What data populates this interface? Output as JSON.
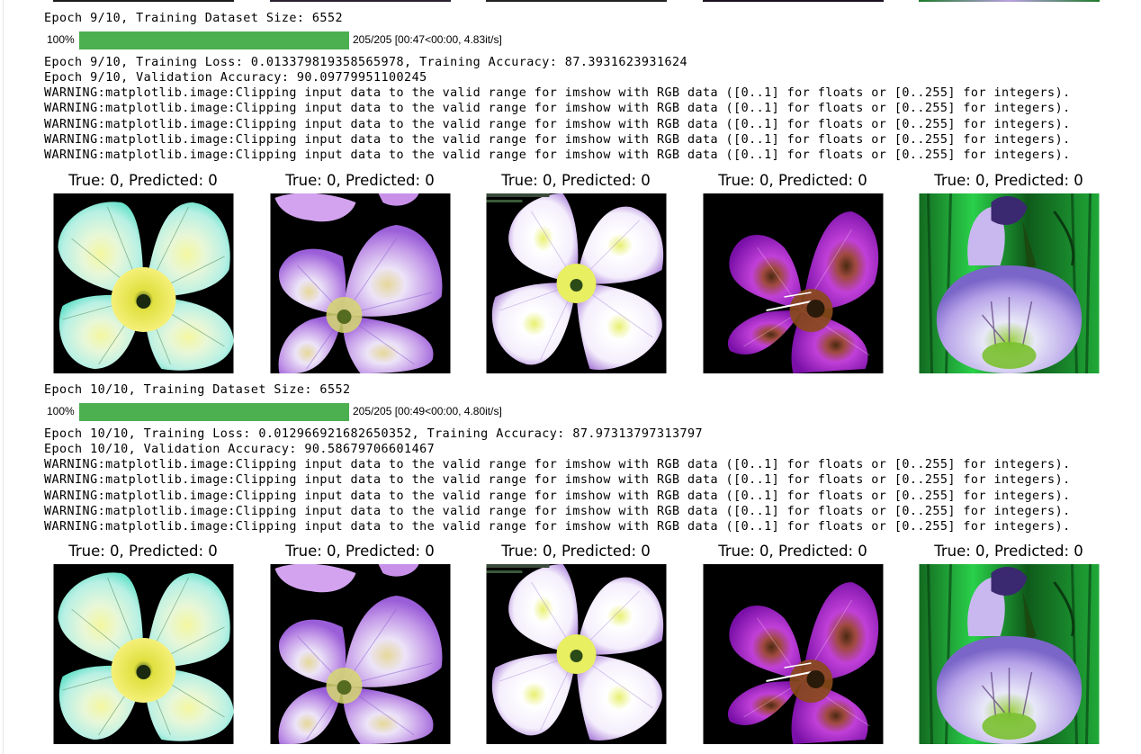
{
  "epochs": [
    {
      "dataset_size_text": "Epoch 9/10, Training Dataset Size: 6552",
      "progress": {
        "percent_text": "100%",
        "fraction": 1.0,
        "status_text": "205/205 [00:47<00:00, 4.83it/s]",
        "color": "#4caf50"
      },
      "loss_text": "Epoch 9/10, Training Loss: 0.013379819358565978, Training Accuracy: 87.3931623931624",
      "val_text": "Epoch 9/10, Validation Accuracy: 90.09779951100245",
      "warnings": [
        "WARNING:matplotlib.image:Clipping input data to the valid range for imshow with RGB data ([0..1] for floats or [0..255] for integers).",
        "WARNING:matplotlib.image:Clipping input data to the valid range for imshow with RGB data ([0..1] for floats or [0..255] for integers).",
        "WARNING:matplotlib.image:Clipping input data to the valid range for imshow with RGB data ([0..1] for floats or [0..255] for integers).",
        "WARNING:matplotlib.image:Clipping input data to the valid range for imshow with RGB data ([0..1] for floats or [0..255] for integers).",
        "WARNING:matplotlib.image:Clipping input data to the valid range for imshow with RGB data ([0..1] for floats or [0..255] for integers)."
      ],
      "panels": [
        {
          "title": "True: 0, Predicted: 0",
          "image": "white-yellow-flower"
        },
        {
          "title": "True: 0, Predicted: 0",
          "image": "lilac-flower"
        },
        {
          "title": "True: 0, Predicted: 0",
          "image": "white-purple-flower"
        },
        {
          "title": "True: 0, Predicted: 0",
          "image": "magenta-flower"
        },
        {
          "title": "True: 0, Predicted: 0",
          "image": "bellflower-green-background"
        }
      ]
    },
    {
      "dataset_size_text": "Epoch 10/10, Training Dataset Size: 6552",
      "progress": {
        "percent_text": "100%",
        "fraction": 1.0,
        "status_text": "205/205 [00:49<00:00, 4.80it/s]",
        "color": "#4caf50"
      },
      "loss_text": "Epoch 10/10, Training Loss: 0.012966921682650352, Training Accuracy: 87.97313797313797",
      "val_text": "Epoch 10/10, Validation Accuracy: 90.58679706601467",
      "warnings": [
        "WARNING:matplotlib.image:Clipping input data to the valid range for imshow with RGB data ([0..1] for floats or [0..255] for integers).",
        "WARNING:matplotlib.image:Clipping input data to the valid range for imshow with RGB data ([0..1] for floats or [0..255] for integers).",
        "WARNING:matplotlib.image:Clipping input data to the valid range for imshow with RGB data ([0..1] for floats or [0..255] for integers).",
        "WARNING:matplotlib.image:Clipping input data to the valid range for imshow with RGB data ([0..1] for floats or [0..255] for integers).",
        "WARNING:matplotlib.image:Clipping input data to the valid range for imshow with RGB data ([0..1] for floats or [0..255] for integers)."
      ],
      "panels": [
        {
          "title": "True: 0, Predicted: 0",
          "image": "white-yellow-flower"
        },
        {
          "title": "True: 0, Predicted: 0",
          "image": "lilac-flower"
        },
        {
          "title": "True: 0, Predicted: 0",
          "image": "white-purple-flower"
        },
        {
          "title": "True: 0, Predicted: 0",
          "image": "magenta-flower"
        },
        {
          "title": "True: 0, Predicted: 0",
          "image": "bellflower-green-background"
        }
      ]
    }
  ]
}
